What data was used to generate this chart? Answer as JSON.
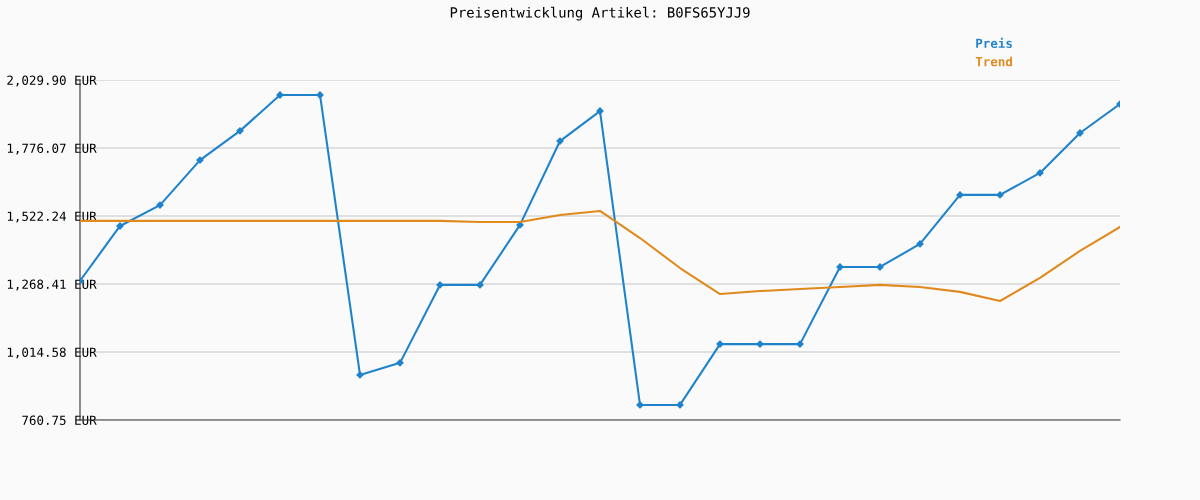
{
  "chart_data": {
    "type": "line",
    "title": "Preisentwicklung Artikel: B0FS65YJJ9",
    "categories": [
      null,
      null,
      null,
      null,
      null,
      null,
      null,
      null,
      null,
      null,
      null,
      null,
      null,
      null,
      null,
      null,
      null,
      null,
      null,
      null,
      null,
      null,
      null,
      null,
      null,
      null,
      null
    ],
    "series": [
      {
        "name": "Preis",
        "color": "#1f83cc",
        "marker": "diamond",
        "values": [
          1280,
          1485,
          1563,
          1731,
          1840,
          1974,
          1974,
          929,
          974,
          1265,
          1265,
          1489,
          1802,
          1914,
          817,
          817,
          1044,
          1044,
          1044,
          1332,
          1332,
          1418,
          1601,
          1601,
          1683,
          1832,
          1940
        ]
      },
      {
        "name": "Trend",
        "color": "#e08a1e",
        "marker": "none",
        "values": [
          1504,
          1504,
          1504,
          1504,
          1504,
          1504,
          1504,
          1504,
          1504,
          1504,
          1500,
          1500,
          1526,
          1541,
          1440,
          1328,
          1231,
          1242,
          1250,
          1257,
          1265,
          1257,
          1239,
          1205,
          1291,
          1392,
          1481
        ]
      }
    ],
    "ylim": [
      760.75,
      2029.9
    ],
    "yticks": [
      {
        "value": 760.75,
        "label": "760.75 EUR"
      },
      {
        "value": 1014.58,
        "label": "1,014.58 EUR"
      },
      {
        "value": 1268.41,
        "label": "1,268.41 EUR"
      },
      {
        "value": 1522.24,
        "label": "1,522.24 EUR"
      },
      {
        "value": 1776.07,
        "label": "1,776.07 EUR"
      },
      {
        "value": 2029.9,
        "label": "2,029.90 EUR"
      }
    ],
    "grid": "y",
    "legend": "top right",
    "line_style": "solid"
  }
}
